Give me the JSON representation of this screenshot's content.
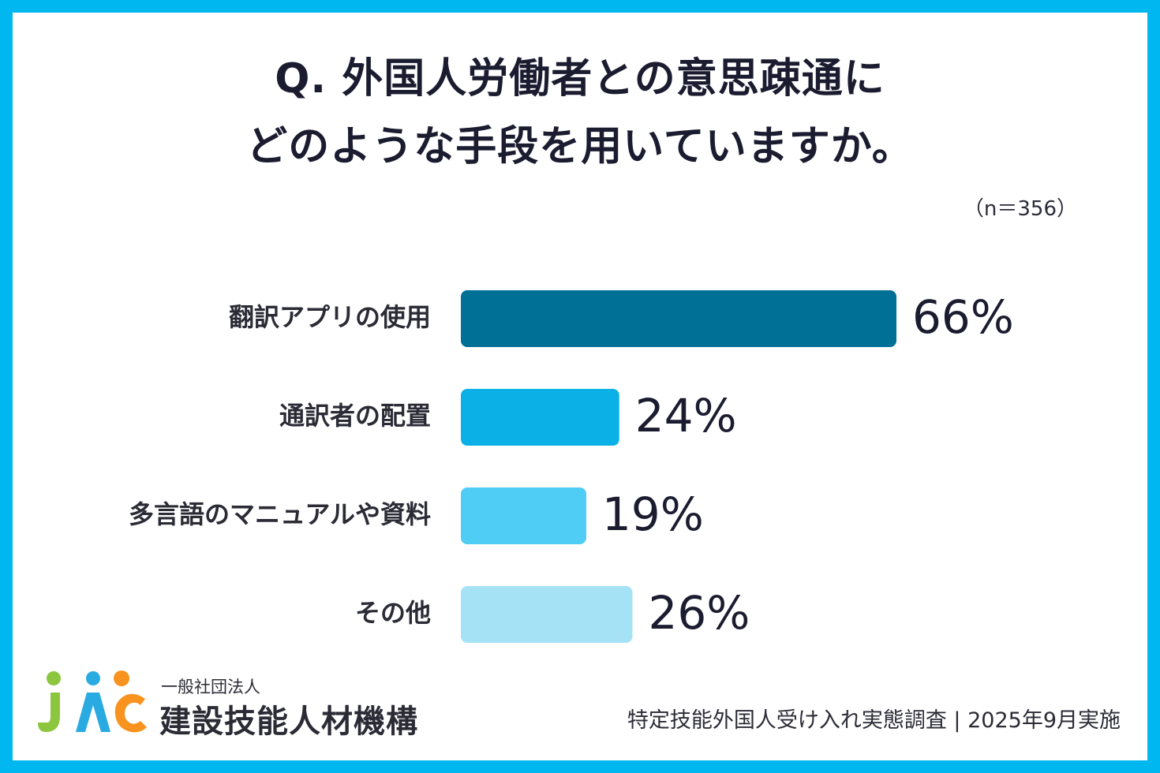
{
  "title": {
    "line1": "Q. 外国人労働者との意思疎通に",
    "line2": "どのような手段を用いていますか。"
  },
  "sample_size": "（n＝356）",
  "chart_data": {
    "type": "bar",
    "orientation": "horizontal",
    "categories": [
      "翻訳アプリの使用",
      "通訳者の配置",
      "多言語のマニュアルや資料",
      "その他"
    ],
    "values": [
      66,
      24,
      19,
      26
    ],
    "value_labels": [
      "66%",
      "24%",
      "19%",
      "26%"
    ],
    "bar_colors": [
      "#007096",
      "#0bb1e6",
      "#4fcdf4",
      "#a5e2f5"
    ],
    "unit": "%",
    "xlim": [
      0,
      100
    ],
    "grid": false,
    "legend": "none"
  },
  "logo": {
    "org_type": "一般社団法人",
    "org_name": "建設技能人材機構",
    "colors": [
      "#8cc63f",
      "#29abe2",
      "#f7931e"
    ]
  },
  "source": "特定技能外国人受け入れ実態調査 | 2025年9月実施",
  "colors": {
    "frame": "#00b7f0",
    "text": "#1b1c30"
  }
}
